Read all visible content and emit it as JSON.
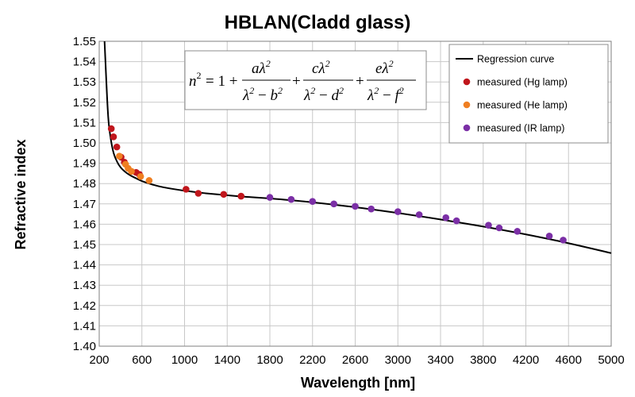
{
  "chart_data": {
    "type": "scatter",
    "title": "HBLAN(Cladd glass)",
    "xlabel": "Wavelength [nm]",
    "ylabel": "Refractive index",
    "xlim": [
      200,
      5000
    ],
    "ylim": [
      1.4,
      1.55
    ],
    "xticks": [
      "200",
      "600",
      "1000",
      "1400",
      "1800",
      "2200",
      "2600",
      "3000",
      "3400",
      "3800",
      "4200",
      "4600",
      "5000"
    ],
    "yticks": [
      "1.40",
      "1.41",
      "1.42",
      "1.43",
      "1.44",
      "1.45",
      "1.46",
      "1.47",
      "1.48",
      "1.49",
      "1.50",
      "1.51",
      "1.52",
      "1.53",
      "1.54",
      "1.55"
    ],
    "grid": true,
    "legend_position": "top-right",
    "equation": {
      "label": "n² = 1 + aλ²/(λ² − b²) + cλ²/(λ² − d²) + eλ²/(λ² − f²)"
    },
    "series": [
      {
        "name": "Regression curve",
        "kind": "line",
        "color": "#000000",
        "x": [
          250,
          280,
          300,
          330,
          365,
          400,
          450,
          500,
          550,
          600,
          700,
          800,
          1000,
          1200,
          1500,
          2000,
          2500,
          3000,
          3500,
          4000,
          4500,
          5000
        ],
        "y": [
          1.55,
          1.516,
          1.505,
          1.496,
          1.491,
          1.488,
          1.4855,
          1.4838,
          1.4825,
          1.4812,
          1.4795,
          1.4782,
          1.4765,
          1.4752,
          1.4738,
          1.4718,
          1.469,
          1.4655,
          1.4615,
          1.457,
          1.4518,
          1.4458
        ]
      },
      {
        "name": "measured (Hg lamp)",
        "kind": "points",
        "color": "#c0161c",
        "x": [
          313,
          334,
          365,
          405,
          436,
          546,
          577,
          1014,
          1129,
          1367,
          1530
        ],
        "y": [
          1.507,
          1.503,
          1.498,
          1.493,
          1.4905,
          1.4855,
          1.4845,
          1.4772,
          1.4752,
          1.4747,
          1.4738
        ]
      },
      {
        "name": "measured (He lamp)",
        "kind": "points",
        "color": "#ef7f22",
        "x": [
          389,
          447,
          471,
          502,
          588,
          668
        ],
        "y": [
          1.4935,
          1.4895,
          1.4875,
          1.486,
          1.4835,
          1.4815
        ]
      },
      {
        "name": "measured (IR lamp)",
        "kind": "points",
        "color": "#7b2fa6",
        "x": [
          1800,
          2000,
          2200,
          2400,
          2600,
          2750,
          3000,
          3200,
          3450,
          3550,
          3850,
          3950,
          4120,
          4420,
          4550
        ],
        "y": [
          1.4732,
          1.4722,
          1.4712,
          1.47,
          1.4688,
          1.4675,
          1.4662,
          1.4647,
          1.4632,
          1.4617,
          1.4595,
          1.4582,
          1.4565,
          1.4542,
          1.4522
        ]
      }
    ]
  }
}
